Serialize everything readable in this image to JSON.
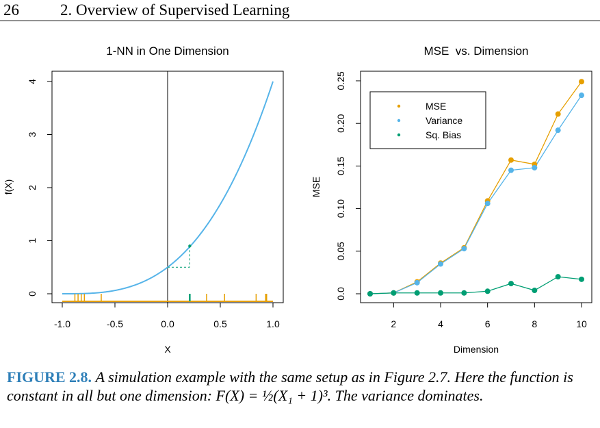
{
  "header": {
    "page_number": "26",
    "chapter_title": "2. Overview of Supervised Learning"
  },
  "caption": {
    "label": "FIGURE 2.8.",
    "text": "A simulation example with the same setup as in Figure 2.7. Here the function is constant in all but one dimension: F(X) = ½(X₁ + 1)³. The variance dominates."
  },
  "colors": {
    "curve": "#56b4e9",
    "mse": "#e69f00",
    "variance": "#56b4e9",
    "bias": "#009e73",
    "axis": "#000000"
  },
  "chart_data": [
    {
      "type": "line",
      "title": "1-NN in One Dimension",
      "xlabel": "X",
      "ylabel": "f(X)",
      "xlim": [
        -1.0,
        1.0
      ],
      "ylim": [
        0,
        4
      ],
      "xticks": [
        "-1.0",
        "-0.5",
        "0.0",
        "0.5",
        "1.0"
      ],
      "yticks": [
        "0",
        "1",
        "2",
        "3",
        "4"
      ],
      "function": "0.5*(x+1)^3",
      "training_points_x": [
        -0.88,
        -0.85,
        -0.82,
        -0.79,
        -0.63,
        0.21,
        0.37,
        0.54,
        0.84,
        0.93,
        0.94
      ],
      "target_x": 0.0,
      "nearest_neighbor": {
        "x": 0.21,
        "y": 0.9
      }
    },
    {
      "type": "line",
      "title": "MSE  vs. Dimension",
      "xlabel": "Dimension",
      "ylabel": "MSE",
      "xlim": [
        1,
        10
      ],
      "ylim": [
        0,
        0.25
      ],
      "xticks": [
        "2",
        "4",
        "6",
        "8",
        "10"
      ],
      "yticks": [
        "0.0",
        "0.05",
        "0.10",
        "0.15",
        "0.20",
        "0.25"
      ],
      "legend_position": "top-left",
      "categories": [
        1,
        2,
        3,
        4,
        5,
        6,
        7,
        8,
        9,
        10
      ],
      "series": [
        {
          "name": "MSE",
          "values": [
            0.0,
            0.001,
            0.014,
            0.036,
            0.054,
            0.109,
            0.157,
            0.152,
            0.211,
            0.249
          ]
        },
        {
          "name": "Variance",
          "values": [
            0.0,
            0.001,
            0.013,
            0.035,
            0.053,
            0.106,
            0.145,
            0.148,
            0.192,
            0.233
          ]
        },
        {
          "name": "Sq. Bias",
          "values": [
            0.0,
            0.001,
            0.001,
            0.001,
            0.001,
            0.003,
            0.012,
            0.004,
            0.02,
            0.017
          ]
        }
      ]
    }
  ]
}
